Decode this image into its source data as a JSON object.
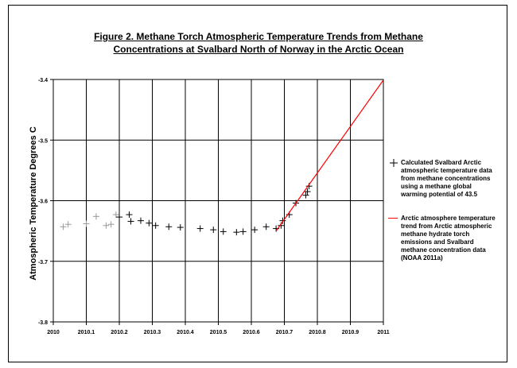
{
  "chart_data": {
    "type": "scatter",
    "title": "Figure 2. Methane Torch Atmospheric Temperature Trends from Methane Concentrations at Svalbard North of Norway in the Arctic Ocean",
    "title_lines": [
      "Figure 2. Methane Torch Atmospheric Temperature Trends from Methane",
      "Concentrations at Svalbard North of Norway in the Arctic Ocean"
    ],
    "xlabel": "",
    "ylabel": "Atmospheric Temperature Degrees C",
    "xlim": [
      2010,
      2011
    ],
    "ylim": [
      -3.8,
      -3.4
    ],
    "x_ticks": [
      2010,
      2010.1,
      2010.2,
      2010.3,
      2010.4,
      2010.5,
      2010.6,
      2010.7,
      2010.8,
      2010.9,
      2011
    ],
    "x_tick_labels": [
      "2010",
      "2010.1",
      "2010.2",
      "2010.3",
      "2010.4",
      "2010.5",
      "2010.6",
      "2010.7",
      "2010.8",
      "2010.9",
      "2011"
    ],
    "y_ticks": [
      -3.8,
      -3.7,
      -3.6,
      -3.5,
      -3.4
    ],
    "y_tick_labels": [
      "-3.8",
      "-3.7",
      "-3.6",
      "-3.5",
      "-3.4"
    ],
    "grid": true,
    "legend_position": "right",
    "colors": {
      "scatter_light": "#999999",
      "scatter_dark": "#000000",
      "trend": "#ff0000"
    },
    "series": [
      {
        "name": "Calculated Svalbard Arctic atmospheric temperature data from methane concentrations using a methane global warming potential of 43.5",
        "type": "scatter",
        "points": [
          [
            2010.03,
            -3.643
          ],
          [
            2010.045,
            -3.639
          ],
          [
            2010.1,
            -3.638
          ],
          [
            2010.13,
            -3.626
          ],
          [
            2010.16,
            -3.641
          ],
          [
            2010.175,
            -3.639
          ],
          [
            2010.19,
            -3.623
          ],
          [
            2010.2,
            -3.627
          ],
          [
            2010.23,
            -3.623
          ],
          [
            2010.235,
            -3.634
          ],
          [
            2010.265,
            -3.633
          ],
          [
            2010.29,
            -3.637
          ],
          [
            2010.31,
            -3.641
          ],
          [
            2010.35,
            -3.643
          ],
          [
            2010.385,
            -3.644
          ],
          [
            2010.445,
            -3.646
          ],
          [
            2010.485,
            -3.648
          ],
          [
            2010.515,
            -3.651
          ],
          [
            2010.555,
            -3.652
          ],
          [
            2010.575,
            -3.651
          ],
          [
            2010.61,
            -3.648
          ],
          [
            2010.645,
            -3.643
          ],
          [
            2010.675,
            -3.646
          ],
          [
            2010.69,
            -3.641
          ],
          [
            2010.695,
            -3.633
          ],
          [
            2010.715,
            -3.623
          ],
          [
            2010.735,
            -3.604
          ],
          [
            2010.765,
            -3.591
          ],
          [
            2010.77,
            -3.585
          ],
          [
            2010.775,
            -3.576
          ]
        ]
      },
      {
        "name": "Arctic atmosphere temperature trend from Arctic atmospheric methane hydrate torch emissions and Svalbard methane concentration data (NOAA 2011a)",
        "type": "line",
        "points": [
          [
            2010.675,
            -3.65
          ],
          [
            2011.0,
            -3.401
          ]
        ]
      }
    ]
  }
}
